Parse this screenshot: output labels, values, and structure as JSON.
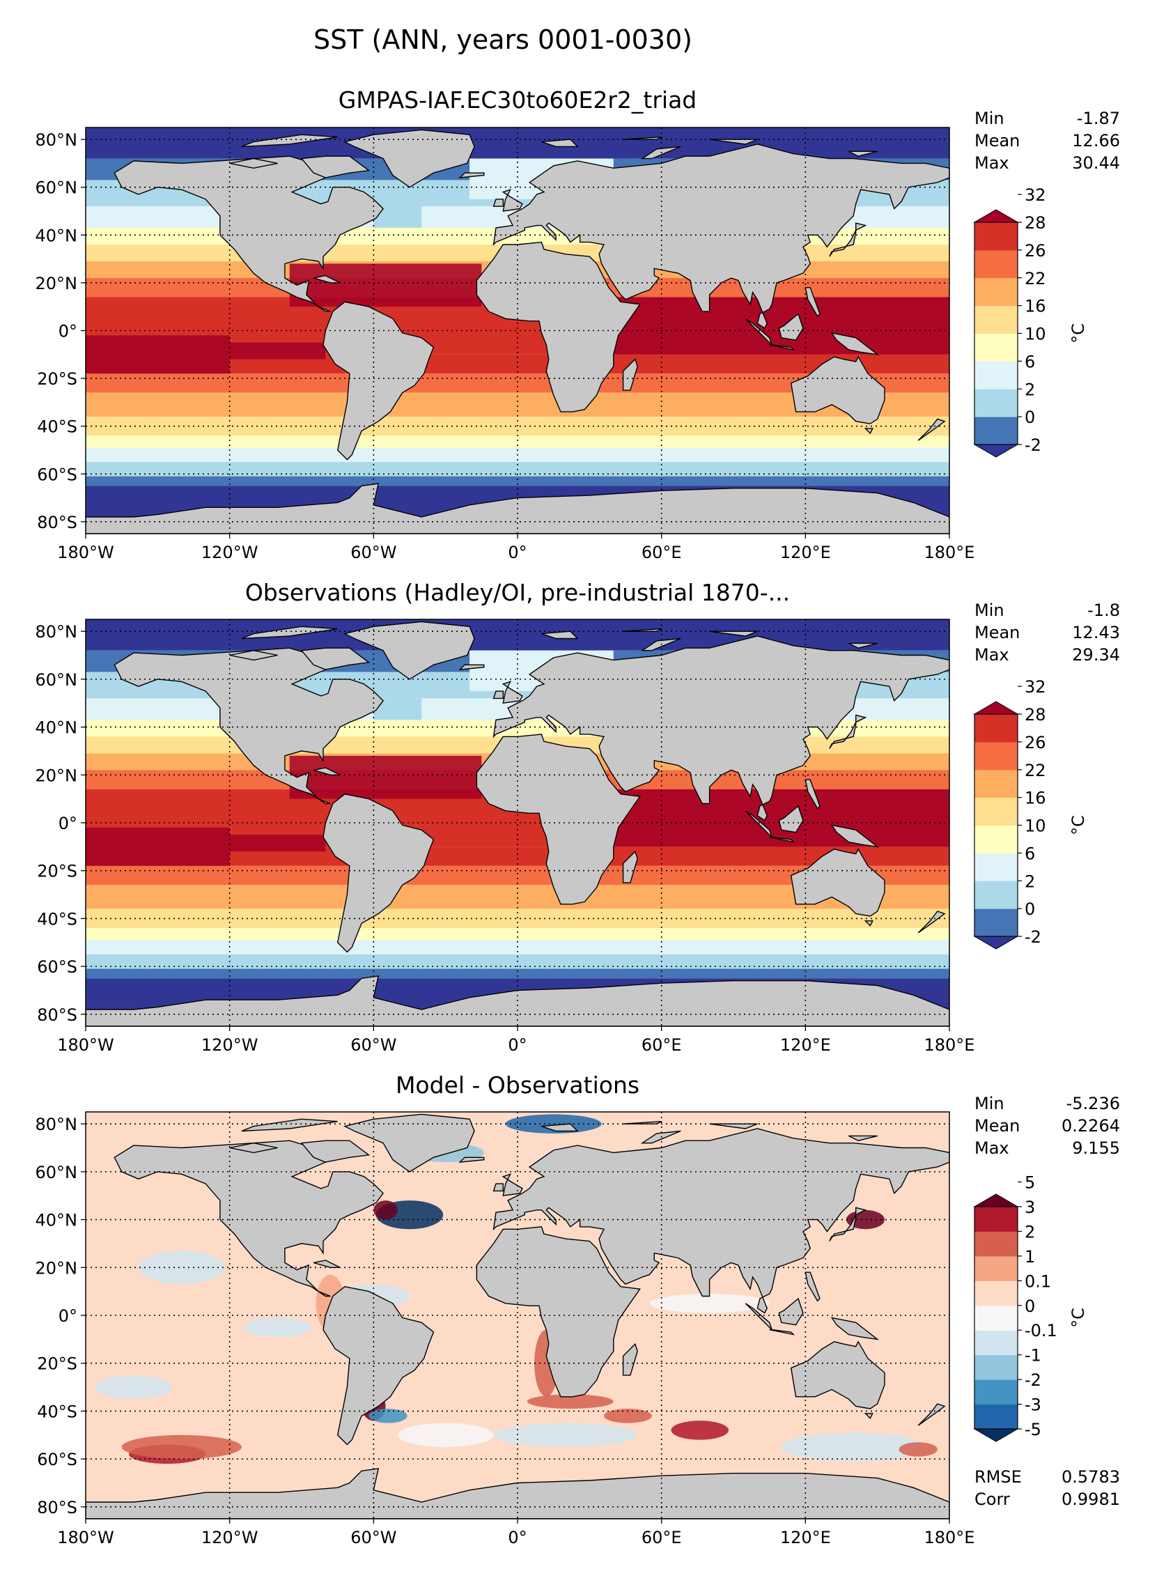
{
  "suptitle": "SST (ANN, years 0001-0030)",
  "chart_data": [
    {
      "type": "heatmap",
      "title": "GMPAS-IAF.EC30to60E2r2_triad",
      "stats": [
        [
          "Min",
          "-1.87"
        ],
        [
          "Mean",
          "12.66"
        ],
        [
          "Max",
          "30.44"
        ]
      ],
      "colorbar": {
        "label": "°C",
        "ticks": [
          "-2",
          "0",
          "2",
          "6",
          "10",
          "16",
          "22",
          "26",
          "28",
          "32"
        ],
        "colors": [
          "#313695",
          "#4575b4",
          "#abd9e9",
          "#e0f3f8",
          "#ffffbf",
          "#fee090",
          "#fdae61",
          "#f46d43",
          "#d73027",
          "#a50026"
        ],
        "extend": "both"
      },
      "xticks": [
        "180°W",
        "120°W",
        "60°W",
        "0°",
        "60°E",
        "120°E",
        "180°E"
      ],
      "yticks": [
        "80°N",
        "60°N",
        "40°N",
        "20°N",
        "0°",
        "20°S",
        "40°S",
        "60°S",
        "80°S"
      ],
      "xlim": [
        -180,
        180
      ],
      "ylim": [
        -85,
        85
      ]
    },
    {
      "type": "heatmap",
      "title": "Observations (Hadley/OI, pre-industrial 1870-...",
      "stats": [
        [
          "Min",
          "-1.8"
        ],
        [
          "Mean",
          "12.43"
        ],
        [
          "Max",
          "29.34"
        ]
      ],
      "colorbar": {
        "label": "°C",
        "ticks": [
          "-2",
          "0",
          "2",
          "6",
          "10",
          "16",
          "22",
          "26",
          "28",
          "32"
        ],
        "colors": [
          "#313695",
          "#4575b4",
          "#abd9e9",
          "#e0f3f8",
          "#ffffbf",
          "#fee090",
          "#fdae61",
          "#f46d43",
          "#d73027",
          "#a50026"
        ],
        "extend": "both"
      },
      "xticks": [
        "180°W",
        "120°W",
        "60°W",
        "0°",
        "60°E",
        "120°E",
        "180°E"
      ],
      "yticks": [
        "80°N",
        "60°N",
        "40°N",
        "20°N",
        "0°",
        "20°S",
        "40°S",
        "60°S",
        "80°S"
      ],
      "xlim": [
        -180,
        180
      ],
      "ylim": [
        -85,
        85
      ]
    },
    {
      "type": "heatmap",
      "title": "Model - Observations",
      "stats": [
        [
          "Min",
          "-5.236"
        ],
        [
          "Mean",
          "0.2264"
        ],
        [
          "Max",
          "9.155"
        ]
      ],
      "extra_stats": [
        [
          "RMSE",
          "0.5783"
        ],
        [
          "Corr",
          "0.9981"
        ]
      ],
      "colorbar": {
        "label": "°C",
        "ticks": [
          "-5",
          "-3",
          "-2",
          "-1",
          "-0.1",
          "0",
          "0.1",
          "1",
          "2",
          "3",
          "5"
        ],
        "colors": [
          "#053061",
          "#2166ac",
          "#4393c3",
          "#92c5de",
          "#d1e5f0",
          "#f7f7f7",
          "#fddbc7",
          "#f4a582",
          "#d6604d",
          "#b2182b",
          "#67001f"
        ],
        "extend": "both"
      },
      "xticks": [
        "180°W",
        "120°W",
        "60°W",
        "0°",
        "60°E",
        "120°E",
        "180°E"
      ],
      "yticks": [
        "80°N",
        "60°N",
        "40°N",
        "20°N",
        "0°",
        "20°S",
        "40°S",
        "60°S",
        "80°S"
      ],
      "xlim": [
        -180,
        180
      ],
      "ylim": [
        -85,
        85
      ]
    }
  ]
}
